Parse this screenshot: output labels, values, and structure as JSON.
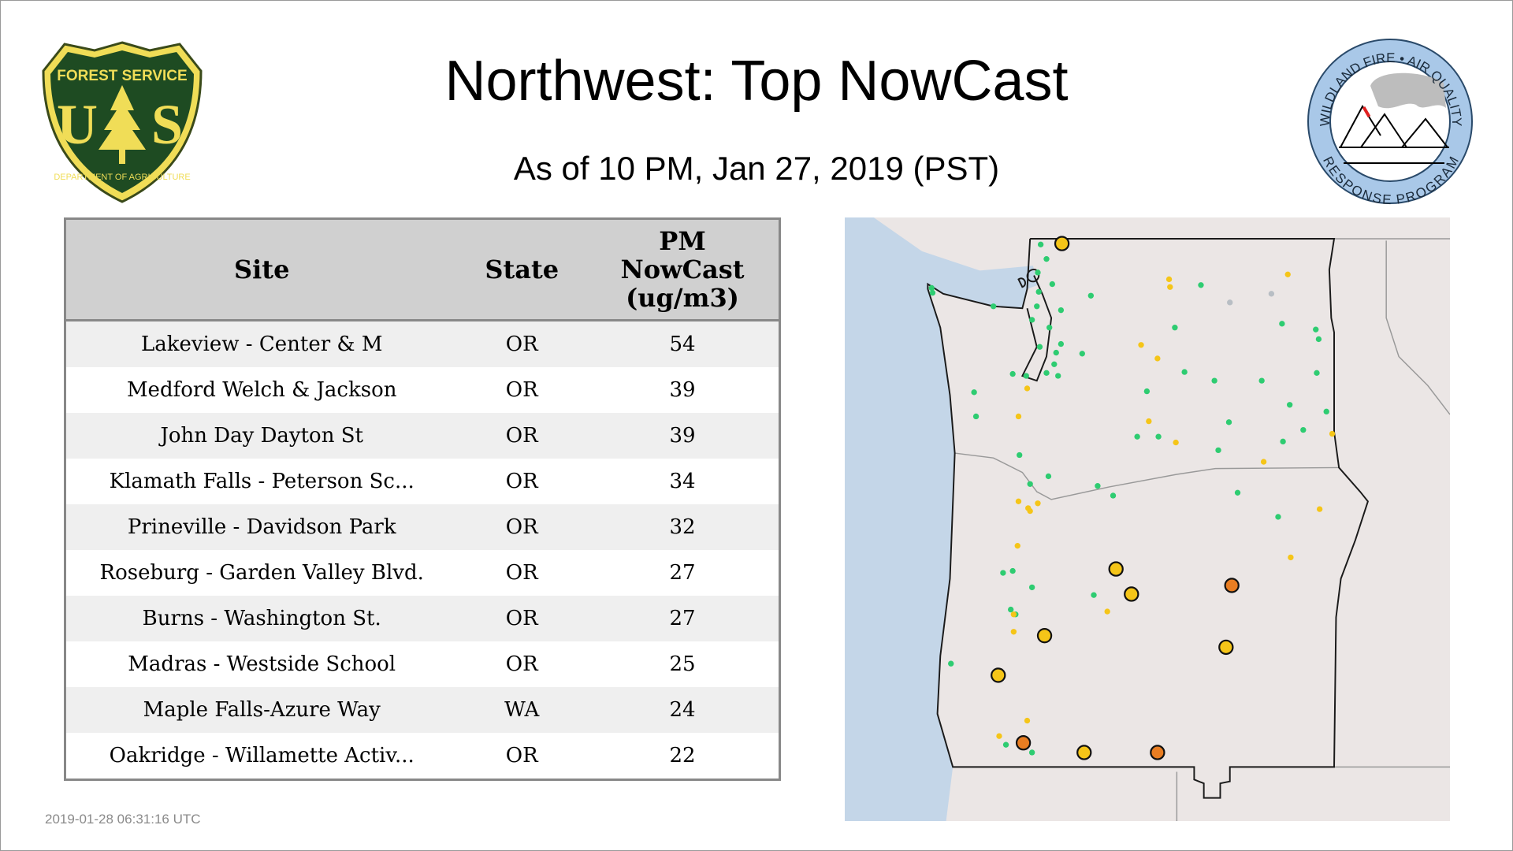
{
  "header": {
    "title": "Northwest: Top NowCast",
    "subtitle": "As of 10 PM, Jan 27, 2019 (PST)"
  },
  "logos": {
    "left": {
      "name": "usfs-logo",
      "text_top": "FOREST SERVICE",
      "text_letters": "U S",
      "text_bottom": "DEPARTMENT OF AGRICULTURE"
    },
    "right": {
      "name": "wildland-fire-air-quality-logo",
      "text_top": "WILDLAND FIRE • AIR QUALITY",
      "text_bottom": "RESPONSE PROGRAM"
    }
  },
  "table": {
    "columns": [
      "Site",
      "State",
      "PM NowCast (ug/m3)"
    ],
    "column_lines": {
      "pm": [
        "PM",
        "NowCast",
        "(ug/m3)"
      ]
    },
    "rows": [
      {
        "site": "Lakeview - Center & M",
        "state": "OR",
        "value": "54"
      },
      {
        "site": "Medford Welch & Jackson",
        "state": "OR",
        "value": "39"
      },
      {
        "site": "John Day Dayton St",
        "state": "OR",
        "value": "39"
      },
      {
        "site": "Klamath Falls - Peterson Sc...",
        "state": "OR",
        "value": "34"
      },
      {
        "site": "Prineville - Davidson Park",
        "state": "OR",
        "value": "32"
      },
      {
        "site": "Roseburg - Garden Valley Blvd.",
        "state": "OR",
        "value": "27"
      },
      {
        "site": "Burns - Washington St.",
        "state": "OR",
        "value": "27"
      },
      {
        "site": "Madras - Westside School",
        "state": "OR",
        "value": "25"
      },
      {
        "site": "Maple Falls-Azure Way",
        "state": "WA",
        "value": "24"
      },
      {
        "site": "Oakridge - Willamette Activ...",
        "state": "OR",
        "value": "22"
      }
    ]
  },
  "map": {
    "colors": {
      "good": "#2ecc71",
      "moderate": "#f5c518",
      "usg": "#e87d22",
      "no_data": "#b8bec4",
      "water": "#c4d6e8",
      "land": "#ebe6e5"
    }
  },
  "footer": {
    "timestamp": "2019-01-28 06:31:16 UTC"
  }
}
